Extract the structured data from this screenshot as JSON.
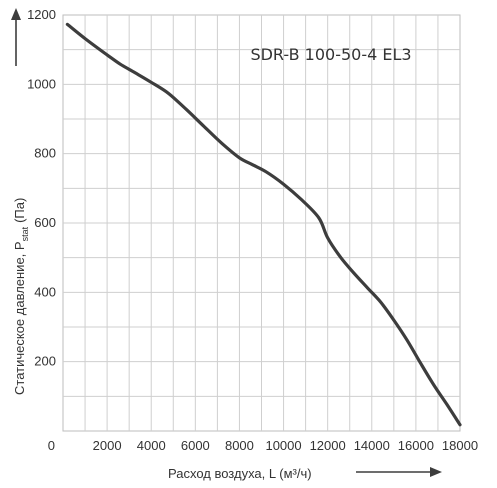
{
  "chart_data": {
    "type": "line",
    "title": "SDR-B 100-50-4 EL3",
    "xlabel": "Расход воздуха, L (м³/ч)",
    "ylabel": "Статическое давление, Pstat (Па)",
    "ylabel_main": "Статическое давление, P",
    "ylabel_sub": "stat",
    "ylabel_unit": "(Па)",
    "xlim": [
      0,
      18000
    ],
    "ylim": [
      0,
      1200
    ],
    "x_ticks": [
      2000,
      4000,
      6000,
      8000,
      10000,
      12000,
      14000,
      16000,
      18000
    ],
    "y_ticks": [
      0,
      200,
      400,
      600,
      800,
      1000,
      1200
    ],
    "x_tick_labels": [
      "2000",
      "4000",
      "6000",
      "8000",
      "10000",
      "12000",
      "14000",
      "16000",
      "18000"
    ],
    "y_tick_labels": [
      "0",
      "200",
      "400",
      "600",
      "800",
      "1000",
      "1200"
    ],
    "x_grid_step": 1000,
    "y_grid_step": 100,
    "grid": true,
    "legend": "none",
    "line_color": "#3d3d3d",
    "grid_color": "#cfcfcf",
    "series": [
      {
        "x": [
          200,
          1000,
          2000,
          2600,
          3200,
          4000,
          4800,
          5600,
          6400,
          7200,
          8000,
          8600,
          9200,
          10000,
          10800,
          11600,
          12000,
          12600,
          13200,
          13800,
          14400,
          15000,
          15600,
          16200,
          16800,
          17400,
          18000
        ],
        "y": [
          1173,
          1132,
          1085,
          1058,
          1036,
          1006,
          973,
          927,
          878,
          830,
          788,
          768,
          748,
          712,
          668,
          615,
          557,
          500,
          455,
          413,
          372,
          320,
          262,
          197,
          134,
          77,
          18
        ]
      }
    ]
  }
}
